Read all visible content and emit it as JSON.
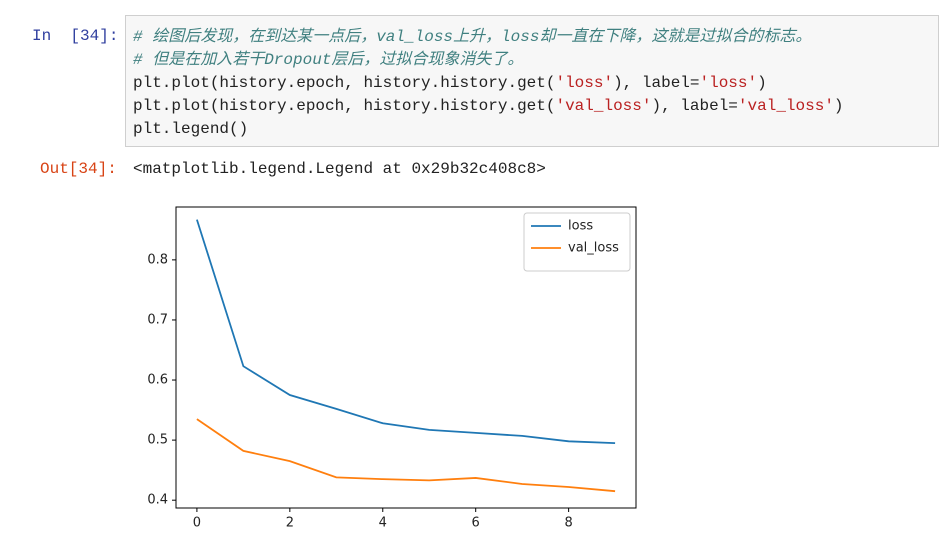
{
  "input_cell": {
    "prompt": "In  [34]:",
    "lines": [
      [
        "# 绘图后发现，在到达某一点后，val_loss上升，loss却一直在下降，这就是过拟合的标志。"
      ],
      [
        "# 但是在加入若干Dropout层后，过拟合现象消失了。"
      ],
      [
        "plt.plot(history.epoch, history.history.get(",
        "'loss'",
        "), label=",
        "'loss'",
        ")"
      ],
      [
        "plt.plot(history.epoch, history.history.get(",
        "'val_loss'",
        "), label=",
        "'val_loss'",
        ")"
      ],
      [
        "plt.legend()"
      ]
    ]
  },
  "output_cell": {
    "prompt": "Out[34]:",
    "text": "<matplotlib.legend.Legend at 0x29b32c408c8>"
  },
  "chart_data": {
    "type": "line",
    "x": [
      0,
      1,
      2,
      3,
      4,
      5,
      6,
      7,
      8,
      9
    ],
    "series": [
      {
        "name": "loss",
        "color": "#1f77b4",
        "values": [
          0.867,
          0.623,
          0.575,
          0.552,
          0.528,
          0.517,
          0.512,
          0.507,
          0.498,
          0.495
        ]
      },
      {
        "name": "val_loss",
        "color": "#ff7f0e",
        "values": [
          0.535,
          0.482,
          0.465,
          0.438,
          0.435,
          0.433,
          0.437,
          0.427,
          0.422,
          0.415
        ]
      }
    ],
    "xlim": [
      -0.45,
      9.45
    ],
    "ylim": [
      0.387,
      0.888
    ],
    "xticks": [
      0,
      2,
      4,
      6,
      8
    ],
    "yticks": [
      0.4,
      0.5,
      0.6,
      0.7,
      0.8
    ],
    "legend": "upper right"
  }
}
